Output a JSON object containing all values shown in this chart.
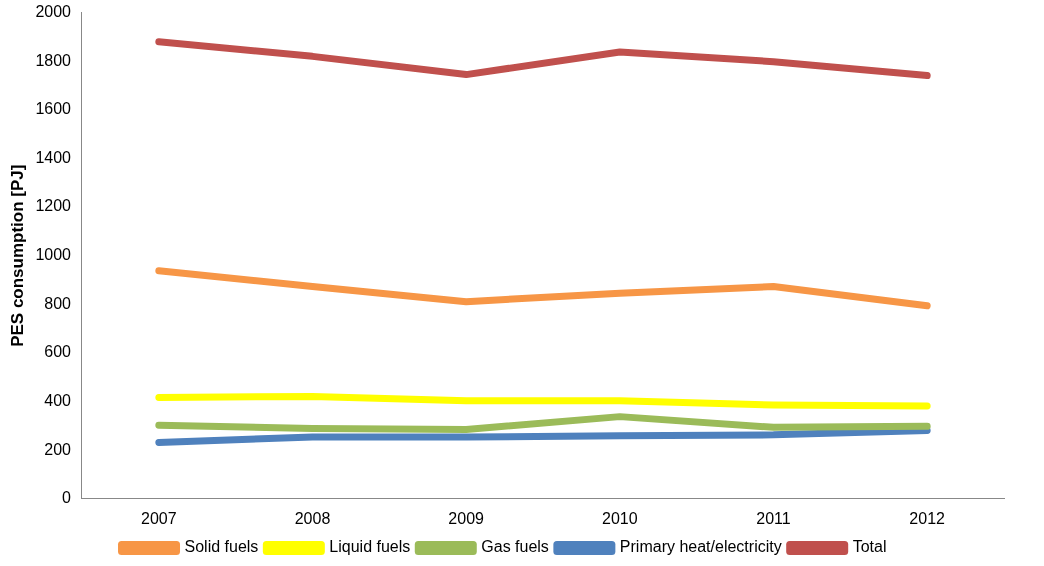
{
  "chart_data": {
    "type": "line",
    "ylabel": "PES consumption [PJ]",
    "categories": [
      "2007",
      "2008",
      "2009",
      "2010",
      "2011",
      "2012"
    ],
    "series": [
      {
        "name": "Solid fuels",
        "color": "#f79646",
        "values": [
          938,
          873,
          811,
          846,
          873,
          794
        ]
      },
      {
        "name": "Liquid fuels",
        "color": "#ffff00",
        "values": [
          417,
          421,
          403,
          403,
          386,
          382
        ]
      },
      {
        "name": "Gas fuels",
        "color": "#9bbb59",
        "values": [
          303,
          289,
          285,
          338,
          294,
          298
        ]
      },
      {
        "name": "Primary heat/electricity",
        "color": "#4f81bd",
        "values": [
          232,
          254,
          254,
          259,
          263,
          281
        ]
      },
      {
        "name": "Total",
        "color": "#c0504d",
        "values": [
          1880,
          1820,
          1745,
          1838,
          1798,
          1741
        ]
      }
    ],
    "ylim": [
      0,
      2000
    ],
    "yticks": [
      0,
      200,
      400,
      600,
      800,
      1000,
      1200,
      1400,
      1600,
      1800,
      2000
    ],
    "grid": false,
    "legend": "bottom",
    "marker": "none",
    "line_style": "solid"
  }
}
